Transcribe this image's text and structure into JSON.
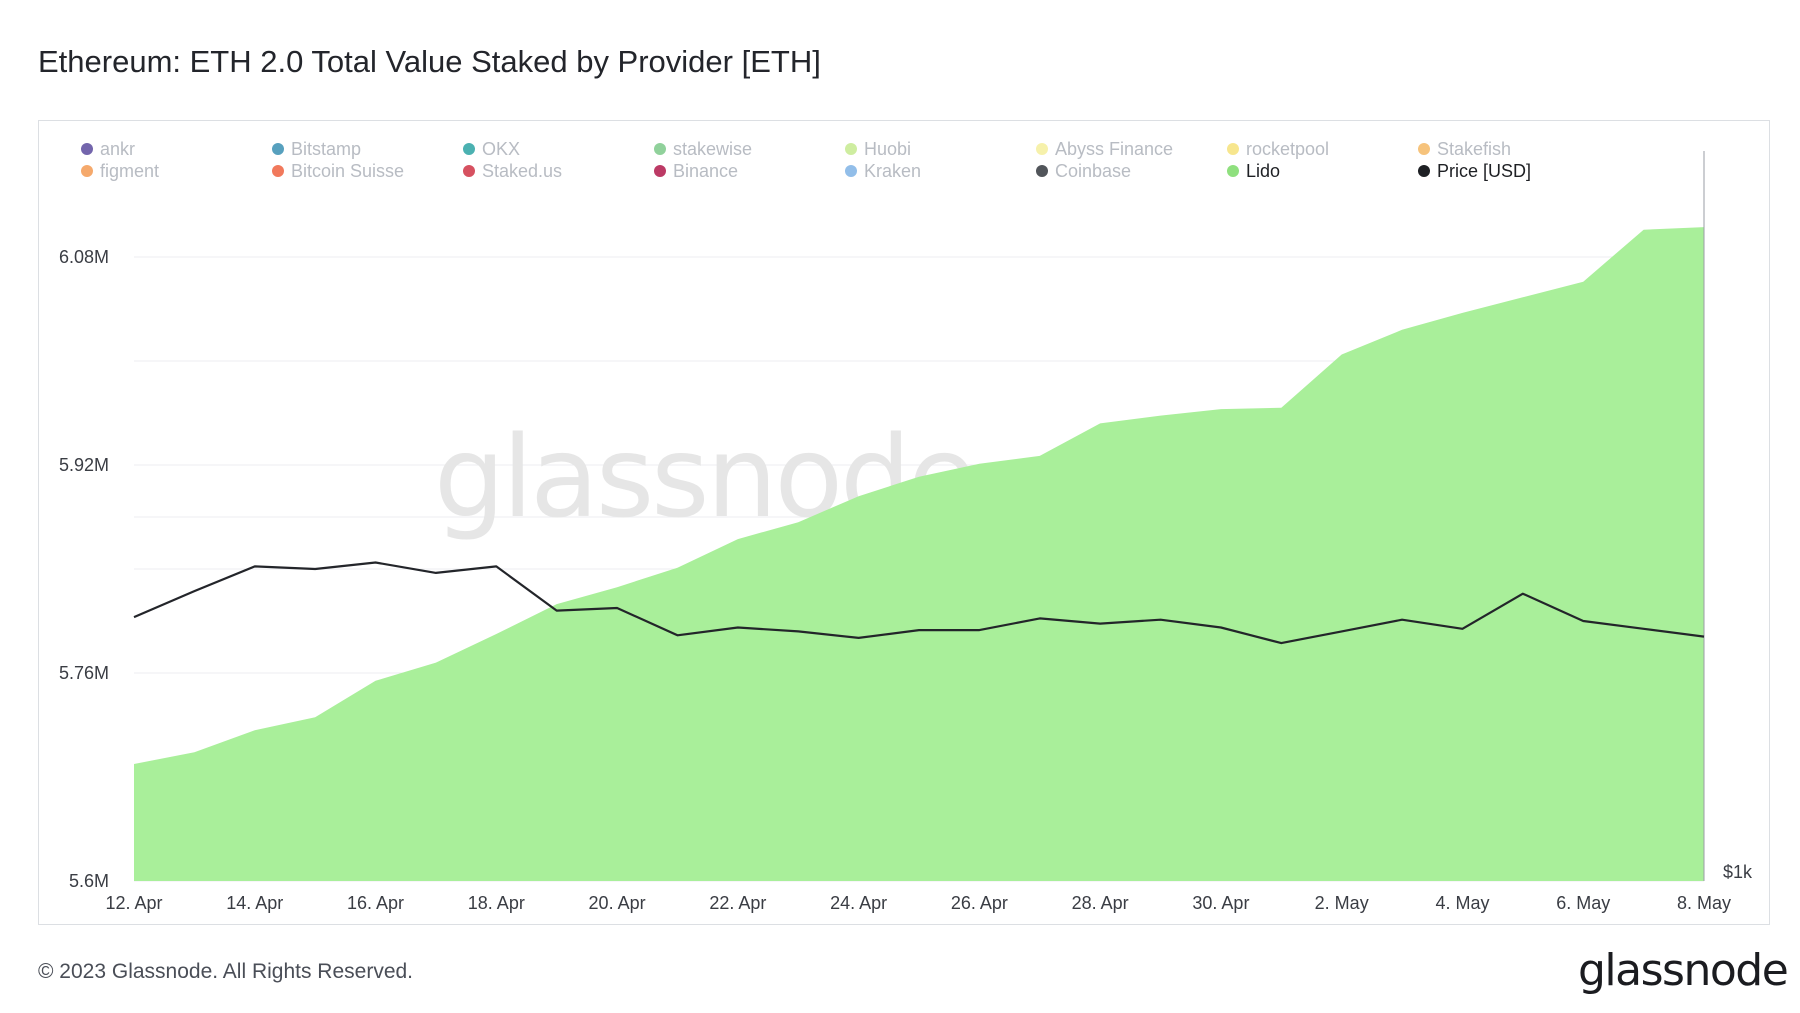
{
  "title": "Ethereum: ETH 2.0 Total Value Staked by Provider [ETH]",
  "footer": {
    "copyright": "© 2023 Glassnode. All Rights Reserved.",
    "brand": "glassnode"
  },
  "watermark": "glassnode",
  "chart_data": {
    "type": "area",
    "legend_position": "top",
    "grid": true,
    "x": [
      "12. Apr",
      "13. Apr",
      "14. Apr",
      "15. Apr",
      "16. Apr",
      "17. Apr",
      "18. Apr",
      "19. Apr",
      "20. Apr",
      "21. Apr",
      "22. Apr",
      "23. Apr",
      "24. Apr",
      "25. Apr",
      "26. Apr",
      "27. Apr",
      "28. Apr",
      "29. Apr",
      "30. Apr",
      "1. May",
      "2. May",
      "3. May",
      "4. May",
      "5. May",
      "6. May",
      "7. May",
      "8. May"
    ],
    "x_ticks": [
      "12. Apr",
      "14. Apr",
      "16. Apr",
      "18. Apr",
      "20. Apr",
      "22. Apr",
      "24. Apr",
      "26. Apr",
      "28. Apr",
      "30. Apr",
      "2. May",
      "4. May",
      "6. May",
      "8. May"
    ],
    "y_ticks": [
      "6.08M",
      "5.92M",
      "5.76M",
      "5.6M"
    ],
    "y_tick_values": [
      6080000,
      5920000,
      5760000,
      5600000
    ],
    "ylim": [
      5600000,
      6150000
    ],
    "right_axis_label": "$1k",
    "legend": [
      {
        "name": "ankr",
        "color": "#5b4a9e",
        "active": false
      },
      {
        "name": "Bitstamp",
        "color": "#3a8fb3",
        "active": false
      },
      {
        "name": "OKX",
        "color": "#2ba3a3",
        "active": false
      },
      {
        "name": "stakewise",
        "color": "#7cc98a",
        "active": false
      },
      {
        "name": "Huobi",
        "color": "#c6ea8f",
        "active": false
      },
      {
        "name": "Abyss Finance",
        "color": "#f4ee9c",
        "active": false
      },
      {
        "name": "rocketpool",
        "color": "#f6e27a",
        "active": false
      },
      {
        "name": "Stakefish",
        "color": "#f5b865",
        "active": false
      },
      {
        "name": "figment",
        "color": "#f39a52",
        "active": false
      },
      {
        "name": "Bitcoin Suisse",
        "color": "#ee6240",
        "active": false
      },
      {
        "name": "Staked.us",
        "color": "#cf3344",
        "active": false
      },
      {
        "name": "Binance",
        "color": "#b0174a",
        "active": false
      },
      {
        "name": "Kraken",
        "color": "#7fb3e5",
        "active": false
      },
      {
        "name": "Coinbase",
        "color": "#33373d",
        "active": false
      },
      {
        "name": "Lido",
        "color": "#8fe07e",
        "active": true
      },
      {
        "name": "Price [USD]",
        "color": "#1e2024",
        "active": true
      }
    ],
    "series": [
      {
        "name": "Lido",
        "kind": "area",
        "color": "#a9ef9a",
        "values": [
          5690000,
          5699000,
          5716000,
          5726000,
          5754000,
          5768000,
          5790000,
          5813000,
          5826000,
          5841000,
          5863000,
          5876000,
          5896000,
          5911000,
          5921000,
          5927000,
          5952000,
          5958000,
          5963000,
          5964000,
          6005000,
          6024000,
          6037000,
          6049000,
          6061000,
          6101000,
          6103000
        ]
      },
      {
        "name": "Price [USD]",
        "kind": "line",
        "color": "#23252a",
        "values": [
          1863,
          1883,
          1902,
          1900,
          1905,
          1897,
          1902,
          1868,
          1870,
          1849,
          1855,
          1852,
          1847,
          1853,
          1853,
          1862,
          1858,
          1861,
          1855,
          1843,
          1852,
          1861,
          1854,
          1881,
          1860,
          1854,
          1848
        ]
      }
    ]
  }
}
